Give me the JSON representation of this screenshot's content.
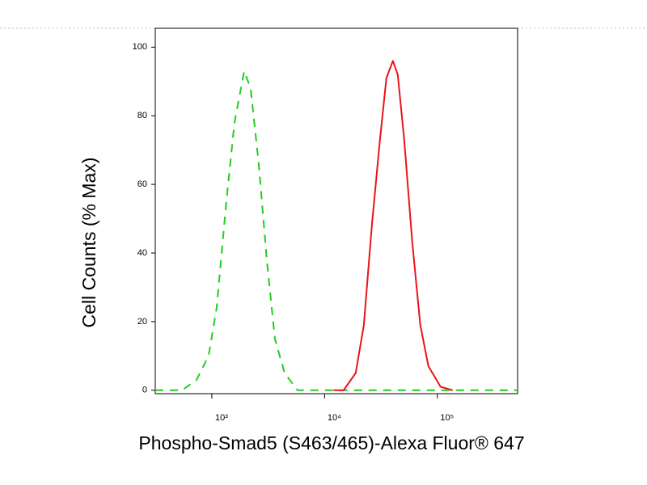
{
  "chart_data": {
    "type": "line",
    "x_label": "Phospho-Smad5 (S463/465)-Alexa Fluor® 647",
    "y_label": "Cell Counts (% Max)",
    "xscale": "log",
    "xlim": [
      315,
      515000
    ],
    "ylim": [
      -1,
      105.5
    ],
    "xticks": [
      {
        "value": 1000,
        "label": "10³"
      },
      {
        "value": 10000,
        "label": "10⁴"
      },
      {
        "value": 100000,
        "label": "10⁵"
      }
    ],
    "yticks": [
      0,
      20,
      40,
      60,
      80,
      100
    ],
    "grid": false,
    "series": [
      {
        "color": "#22cc22",
        "dash": true,
        "x": [
          315,
          543,
          731,
          936,
          1104,
          1346,
          1587,
          1935,
          2208,
          2606,
          3071,
          3624,
          4416,
          5754,
          515000
        ],
        "values": [
          0,
          0,
          3,
          10,
          24,
          55,
          78,
          93,
          88,
          66,
          38,
          15,
          5,
          0,
          0
        ]
      },
      {
        "color": "#e8141a",
        "dash": false,
        "x": [
          12000,
          14730,
          18880,
          22280,
          26240,
          30970,
          35320,
          40360,
          44570,
          50820,
          59950,
          70650,
          83350,
          106900,
          136900
        ],
        "values": [
          0,
          0,
          5,
          19,
          48,
          73,
          91,
          96,
          92,
          73,
          43,
          19,
          7,
          1,
          0
        ]
      }
    ]
  }
}
